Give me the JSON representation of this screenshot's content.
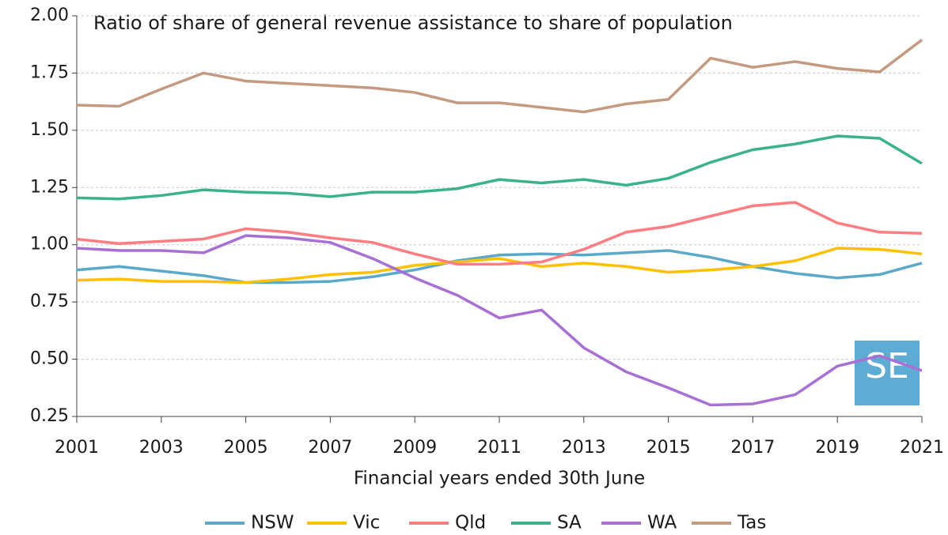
{
  "chart_data": {
    "type": "line",
    "title": "Ratio of share of general revenue assistance to share of population",
    "x_label": "Financial years ended 30th June",
    "x": [
      2001,
      2002,
      2003,
      2004,
      2005,
      2006,
      2007,
      2008,
      2009,
      2010,
      2011,
      2012,
      2013,
      2014,
      2015,
      2016,
      2017,
      2018,
      2019,
      2020,
      2021
    ],
    "xlim": [
      2001,
      2021
    ],
    "xticks": [
      2001,
      2003,
      2005,
      2007,
      2009,
      2011,
      2013,
      2015,
      2017,
      2019,
      2021
    ],
    "ylim": [
      0.25,
      2.0
    ],
    "yticks": [
      {
        "value": 0.25,
        "label": "0.25"
      },
      {
        "value": 0.5,
        "label": "0.50"
      },
      {
        "value": 0.75,
        "label": "0.75"
      },
      {
        "value": 1.0,
        "label": "1.00"
      },
      {
        "value": 1.25,
        "label": "1.25"
      },
      {
        "value": 1.5,
        "label": "1.50"
      },
      {
        "value": 1.75,
        "label": "1.75"
      },
      {
        "value": 2.0,
        "label": "2.00"
      }
    ],
    "grid": true,
    "legend": "bottom",
    "watermark": "SE",
    "series": [
      {
        "name": "NSW",
        "color": "#5aa9c9",
        "values": [
          0.89,
          0.905,
          0.885,
          0.865,
          0.835,
          0.835,
          0.84,
          0.86,
          0.89,
          0.93,
          0.955,
          0.96,
          0.955,
          0.965,
          0.975,
          0.945,
          0.905,
          0.875,
          0.855,
          0.87,
          0.92
        ]
      },
      {
        "name": "Vic",
        "color": "#ffc000",
        "values": [
          0.845,
          0.85,
          0.84,
          0.84,
          0.835,
          0.85,
          0.87,
          0.88,
          0.91,
          0.925,
          0.94,
          0.905,
          0.92,
          0.905,
          0.88,
          0.89,
          0.905,
          0.93,
          0.985,
          0.98,
          0.96
        ]
      },
      {
        "name": "Qld",
        "color": "#ff7c80",
        "values": [
          1.025,
          1.005,
          1.015,
          1.025,
          1.07,
          1.055,
          1.03,
          1.01,
          0.96,
          0.915,
          0.915,
          0.925,
          0.98,
          1.055,
          1.08,
          1.125,
          1.17,
          1.185,
          1.095,
          1.055,
          1.05
        ]
      },
      {
        "name": "SA",
        "color": "#3bb38a",
        "values": [
          1.205,
          1.2,
          1.215,
          1.24,
          1.23,
          1.225,
          1.21,
          1.23,
          1.23,
          1.245,
          1.285,
          1.27,
          1.285,
          1.26,
          1.29,
          1.36,
          1.415,
          1.44,
          1.475,
          1.465,
          1.355
        ]
      },
      {
        "name": "WA",
        "color": "#a86fd4",
        "values": [
          0.985,
          0.975,
          0.975,
          0.965,
          1.04,
          1.03,
          1.01,
          0.94,
          0.855,
          0.78,
          0.68,
          0.715,
          0.55,
          0.445,
          0.375,
          0.3,
          0.305,
          0.345,
          0.47,
          0.515,
          0.45
        ]
      },
      {
        "name": "Tas",
        "color": "#c49a80",
        "values": [
          1.61,
          1.605,
          1.68,
          1.75,
          1.715,
          1.705,
          1.695,
          1.685,
          1.665,
          1.62,
          1.62,
          1.6,
          1.58,
          1.615,
          1.635,
          1.815,
          1.775,
          1.8,
          1.77,
          1.755,
          1.895
        ]
      }
    ]
  }
}
